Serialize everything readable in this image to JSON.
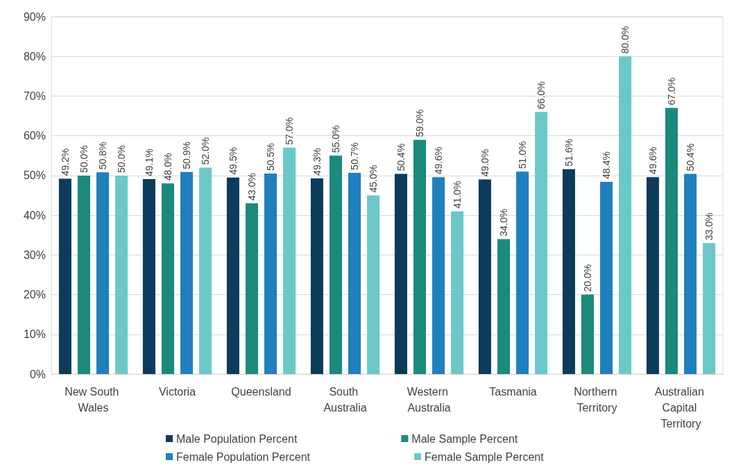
{
  "chart_data": {
    "type": "bar",
    "categories": [
      "New South Wales",
      "Victoria",
      "Queensland",
      "South Australia",
      "Western Australia",
      "Tasmania",
      "Northern Territory",
      "Australian Capital Territory"
    ],
    "series": [
      {
        "name": "Male Population Percent",
        "color": "#0d3b5c",
        "values": [
          49.2,
          49.1,
          49.5,
          49.3,
          50.4,
          49.0,
          51.6,
          49.6
        ],
        "value_labels": [
          "49.2%",
          "49.1%",
          "49.5%",
          "49.3%",
          "50.4%",
          "49.0%",
          "51.6%",
          "49.6%"
        ]
      },
      {
        "name": "Male Sample Percent",
        "color": "#1b8a7a",
        "values": [
          50.0,
          48.0,
          43.0,
          55.0,
          59.0,
          34.0,
          20.0,
          67.0
        ],
        "value_labels": [
          "50.0%",
          "48.0%",
          "43.0%",
          "55.0%",
          "59.0%",
          "34.0%",
          "20.0%",
          "67.0%"
        ]
      },
      {
        "name": "Female Population Percent",
        "color": "#1f80bd",
        "values": [
          50.8,
          50.9,
          50.5,
          50.7,
          49.6,
          51.0,
          48.4,
          50.4
        ],
        "value_labels": [
          "50.8%",
          "50.9%",
          "50.5%",
          "50.7%",
          "49.6%",
          "51.0%",
          "48.4%",
          "50.4%"
        ]
      },
      {
        "name": "Female Sample Percent",
        "color": "#6cc8c8",
        "values": [
          50.0,
          52.0,
          57.0,
          45.0,
          41.0,
          66.0,
          80.0,
          33.0
        ],
        "value_labels": [
          "50.0%",
          "52.0%",
          "57.0%",
          "45.0%",
          "41.0%",
          "66.0%",
          "80.0%",
          "33.0%"
        ]
      }
    ],
    "ylim": [
      0,
      90
    ],
    "yticks": [
      {
        "value": 0,
        "label": "0%"
      },
      {
        "value": 10,
        "label": "10%"
      },
      {
        "value": 20,
        "label": "20%"
      },
      {
        "value": 30,
        "label": "30%"
      },
      {
        "value": 40,
        "label": "40%"
      },
      {
        "value": 50,
        "label": "50%"
      },
      {
        "value": 60,
        "label": "60%"
      },
      {
        "value": 70,
        "label": "70%"
      },
      {
        "value": 80,
        "label": "80%"
      },
      {
        "value": 90,
        "label": "90%"
      }
    ],
    "grid": "y",
    "legend": "bottom"
  }
}
